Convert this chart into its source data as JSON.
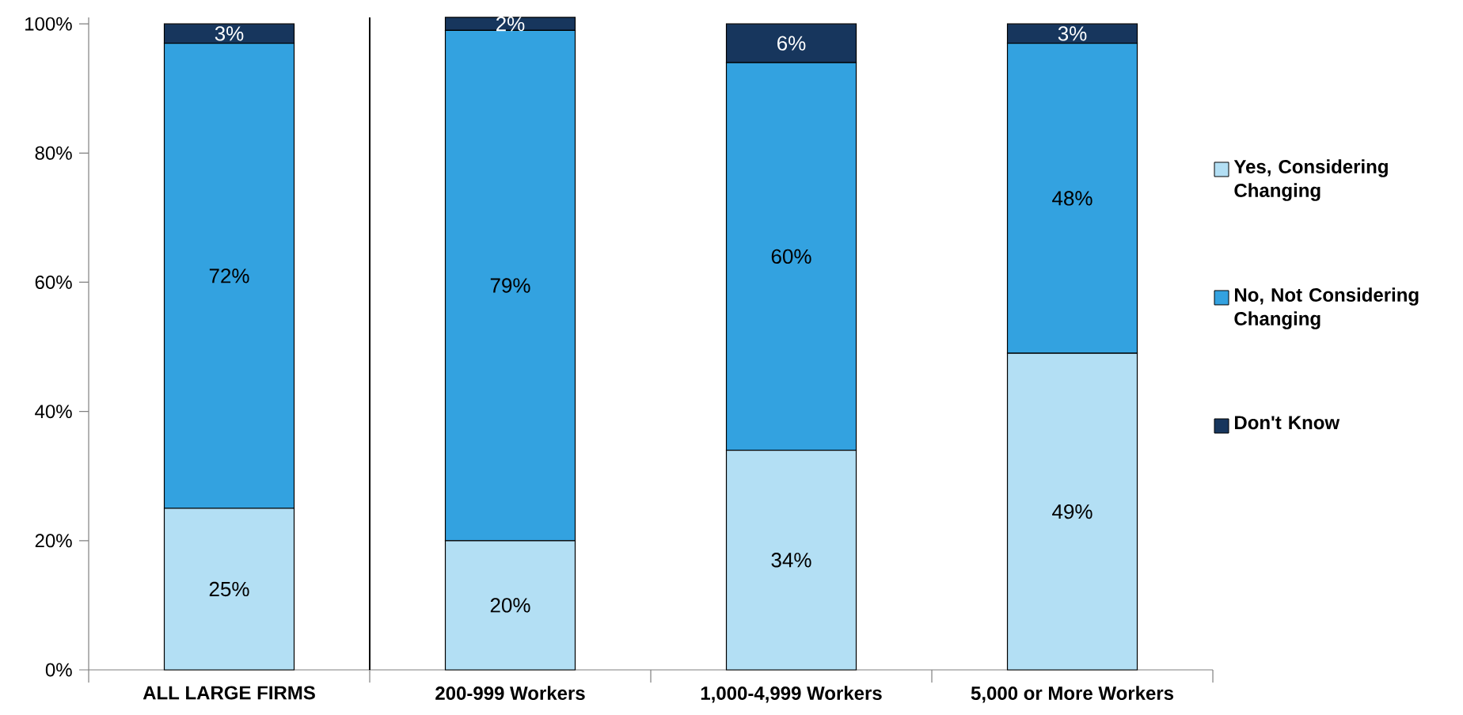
{
  "chart_data": {
    "type": "bar",
    "stacked": true,
    "categories": [
      "ALL LARGE FIRMS",
      "200-999 Workers",
      "1,000-4,999 Workers",
      "5,000 or More Workers"
    ],
    "series": [
      {
        "name": "Yes, Considering Changing",
        "color": "#b3dff4",
        "values": [
          25,
          20,
          34,
          49
        ],
        "value_labels": [
          "25%",
          "20%",
          "34%",
          "49%"
        ]
      },
      {
        "name": "No, Not Considering Changing",
        "color": "#33a2e0",
        "values": [
          72,
          79,
          60,
          48
        ],
        "value_labels": [
          "72%",
          "79%",
          "60%",
          "48%"
        ]
      },
      {
        "name": "Don't Know",
        "color": "#17365d",
        "values": [
          3,
          2,
          6,
          3
        ],
        "value_labels": [
          "3%",
          "2%",
          "6%",
          "3%"
        ]
      }
    ],
    "ylim": [
      0,
      101
    ],
    "yticks": [
      {
        "value": 0,
        "label": "0%"
      },
      {
        "value": 20,
        "label": "20%"
      },
      {
        "value": 40,
        "label": "40%"
      },
      {
        "value": 60,
        "label": "60%"
      },
      {
        "value": 80,
        "label": "80%"
      },
      {
        "value": 100,
        "label": "100%"
      }
    ],
    "legend": "right",
    "grid": false
  }
}
